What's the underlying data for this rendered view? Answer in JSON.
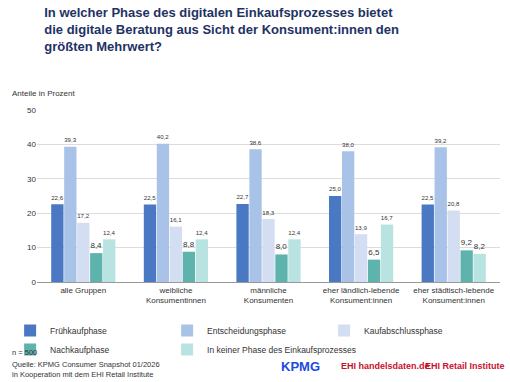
{
  "chart_data": {
    "type": "bar",
    "title": "In welcher Phase des digitalen Einkaufsprozesses bietet\ndie digitale Beratung aus Sicht der Konsument:innen den\ngrößten Mehrwert?",
    "y_label": "Anteile in Prozent",
    "categories": [
      "alle Gruppen",
      "weibliche\nKonsumentinnen",
      "männliche\nKonsumenten",
      "eher ländlich-lebende\nKonsument:innen",
      "eher städtisch-lebende\nKonsument:innen"
    ],
    "series": [
      {
        "name": "Frühkaufphase",
        "color": "#4a78c2",
        "values": [
          22.6,
          22.5,
          22.7,
          25.0,
          22.5
        ],
        "value_labels": [
          "22,6",
          "22,5",
          "22,7",
          "25,0",
          "22,5"
        ]
      },
      {
        "name": "Entscheidungsphase",
        "color": "#a9c3e8",
        "values": [
          39.3,
          40.2,
          38.6,
          38.0,
          39.2
        ],
        "value_labels": [
          "39,3",
          "40,2",
          "38,6",
          "38,0",
          "39,2"
        ]
      },
      {
        "name": "Kaufabschlussphase",
        "color": "#d3def2",
        "values": [
          17.2,
          16.1,
          18.3,
          13.9,
          20.8
        ],
        "value_labels": [
          "17,2",
          "16,1",
          "18,3",
          "13,9",
          "20,8"
        ]
      },
      {
        "name": "Nachkaufphase",
        "color": "#5fb3ad",
        "values": [
          8.4,
          8.8,
          8.0,
          6.5,
          9.2
        ],
        "value_labels": [
          "8,4",
          "8,8",
          "8,0",
          "6,5",
          "9,2"
        ]
      },
      {
        "name": "In keiner Phase des Einkaufsprozesses",
        "color": "#b9e3e0",
        "values": [
          12.4,
          12.4,
          12.4,
          16.7,
          8.2
        ],
        "value_labels": [
          "12,4",
          "12,4",
          "12,4",
          "16,7",
          "8,2"
        ]
      }
    ],
    "ylim": [
      0,
      50
    ],
    "yticks": [
      0,
      10,
      20,
      30,
      40,
      50
    ],
    "grid": true,
    "data_labels": true,
    "legend": "bottom",
    "notes": [
      "n = 500",
      "Quelle: KPMG Consumer Snapshot 01/2026",
      "in Kooperation mit dem EHI Retail Institute"
    ],
    "logos": [
      "KPMG",
      "EHI handelsdaten.de",
      "EHI Retail Institute"
    ]
  }
}
